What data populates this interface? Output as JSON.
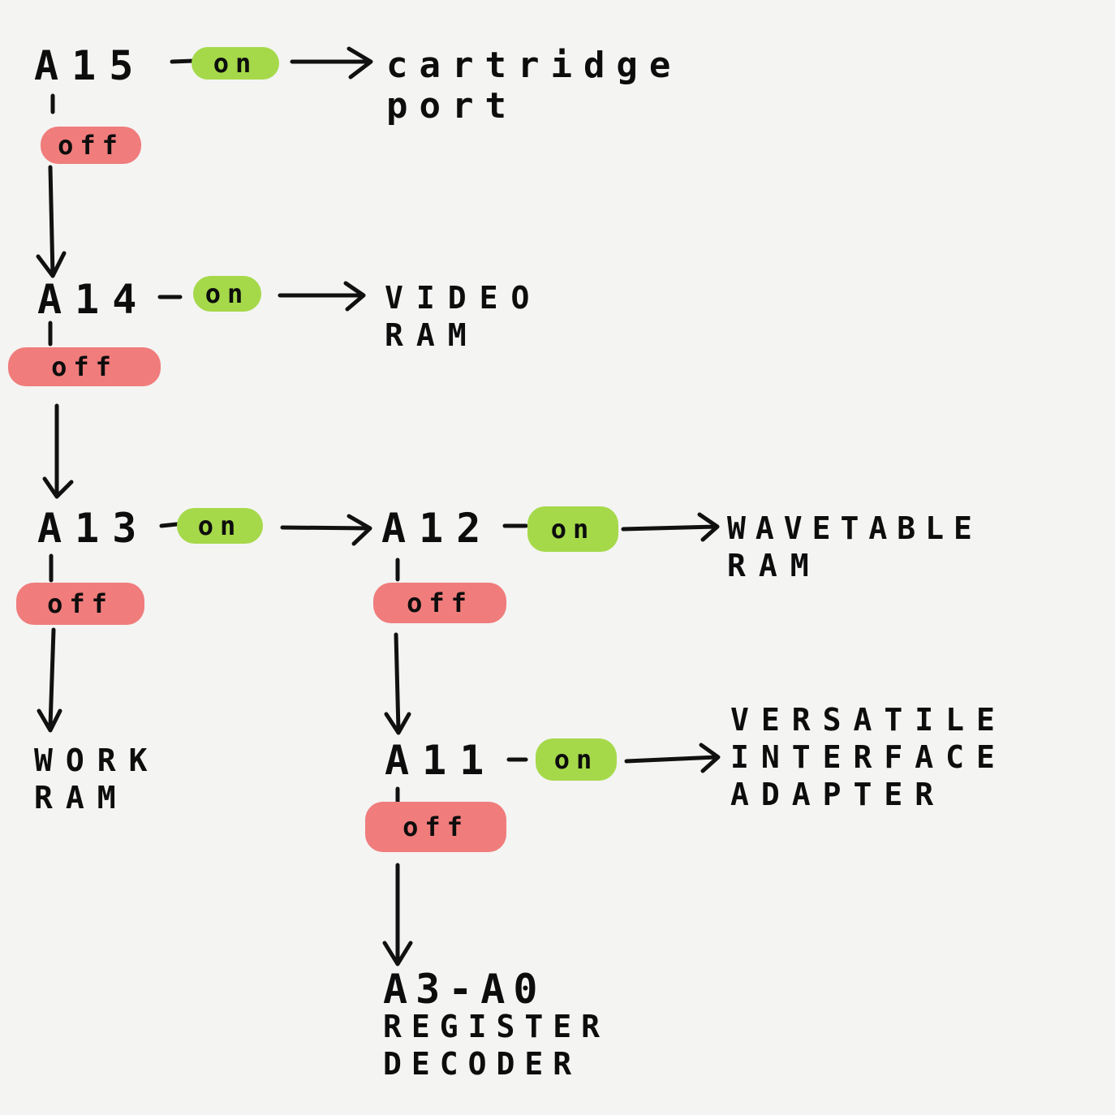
{
  "colors": {
    "on": "#a5d94a",
    "off": "#f07c7c",
    "ink": "#111111",
    "paper": "#f4f4f2"
  },
  "nodes": {
    "a15": {
      "label": "A15",
      "on": "on",
      "off": "off"
    },
    "a14": {
      "label": "A14",
      "on": "on",
      "off": "off"
    },
    "a13": {
      "label": "A13",
      "on": "on",
      "off": "off"
    },
    "a12": {
      "label": "A12",
      "on": "on",
      "off": "off"
    },
    "a11": {
      "label": "A11",
      "on": "on",
      "off": "off"
    },
    "a3a0": {
      "label": "A3-A0"
    }
  },
  "destinations": {
    "cartridge_port": {
      "line1": "cartridge",
      "line2": "port"
    },
    "video_ram": {
      "line1": "VIDEO",
      "line2": "RAM"
    },
    "work_ram": {
      "line1": "WORK",
      "line2": "RAM"
    },
    "wavetable_ram": {
      "line1": "WAVETABLE",
      "line2": "RAM"
    },
    "via": {
      "line1": "VERSATILE",
      "line2": "INTERFACE",
      "line3": "ADAPTER"
    },
    "register_decoder": {
      "line1": "REGISTER",
      "line2": "DECODER"
    }
  }
}
